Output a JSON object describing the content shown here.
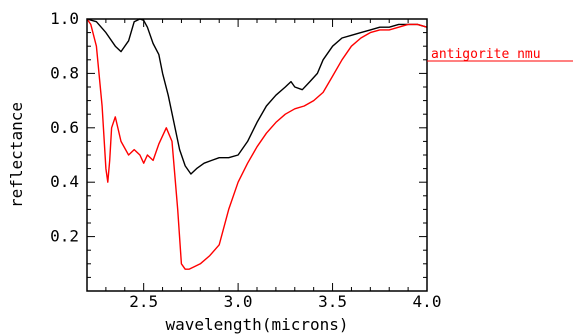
{
  "chart_data": {
    "type": "line",
    "title": "",
    "xlabel": "wavelength(microns)",
    "ylabel": "reflectance",
    "xlim": [
      2.2,
      4.0
    ],
    "ylim": [
      0.0,
      1.0
    ],
    "xticks": [
      {
        "value": 2.5,
        "label": "2.5"
      },
      {
        "value": 3.0,
        "label": "3.0"
      },
      {
        "value": 3.5,
        "label": "3.5"
      },
      {
        "value": 4.0,
        "label": "4.0"
      }
    ],
    "yticks": [
      {
        "value": 0.2,
        "label": "0.2"
      },
      {
        "value": 0.4,
        "label": "0.4"
      },
      {
        "value": 0.6,
        "label": "0.6"
      },
      {
        "value": 0.8,
        "label": "0.8"
      },
      {
        "value": 1.0,
        "label": "1.0"
      }
    ],
    "grid": false,
    "legend_position": "right",
    "series": [
      {
        "color": "#000000",
        "x": [
          2.2,
          2.25,
          2.3,
          2.35,
          2.38,
          2.42,
          2.45,
          2.48,
          2.5,
          2.52,
          2.55,
          2.58,
          2.6,
          2.63,
          2.66,
          2.69,
          2.72,
          2.75,
          2.78,
          2.82,
          2.86,
          2.9,
          2.95,
          3.0,
          3.05,
          3.1,
          3.15,
          3.2,
          3.25,
          3.28,
          3.3,
          3.34,
          3.38,
          3.42,
          3.45,
          3.5,
          3.55,
          3.6,
          3.65,
          3.7,
          3.75,
          3.8,
          3.85,
          3.9,
          3.95,
          4.0
        ],
        "y": [
          1.0,
          0.99,
          0.95,
          0.9,
          0.88,
          0.92,
          0.99,
          1.0,
          0.995,
          0.97,
          0.91,
          0.87,
          0.8,
          0.72,
          0.62,
          0.52,
          0.46,
          0.43,
          0.45,
          0.47,
          0.48,
          0.49,
          0.49,
          0.5,
          0.55,
          0.62,
          0.68,
          0.72,
          0.75,
          0.77,
          0.75,
          0.74,
          0.77,
          0.8,
          0.85,
          0.9,
          0.93,
          0.94,
          0.95,
          0.96,
          0.97,
          0.97,
          0.98,
          0.98,
          0.98,
          0.97
        ]
      },
      {
        "name": "antigorite_nmu",
        "color": "#ff0000",
        "x": [
          2.2,
          2.22,
          2.25,
          2.28,
          2.3,
          2.31,
          2.32,
          2.33,
          2.35,
          2.38,
          2.42,
          2.45,
          2.48,
          2.5,
          2.52,
          2.55,
          2.58,
          2.62,
          2.65,
          2.68,
          2.7,
          2.72,
          2.74,
          2.77,
          2.8,
          2.85,
          2.9,
          2.95,
          3.0,
          3.05,
          3.1,
          3.15,
          3.2,
          3.25,
          3.3,
          3.35,
          3.4,
          3.45,
          3.5,
          3.55,
          3.6,
          3.65,
          3.7,
          3.75,
          3.8,
          3.85,
          3.9,
          3.95,
          4.0
        ],
        "y": [
          1.0,
          0.98,
          0.9,
          0.68,
          0.45,
          0.4,
          0.48,
          0.6,
          0.64,
          0.55,
          0.5,
          0.52,
          0.5,
          0.47,
          0.5,
          0.48,
          0.54,
          0.6,
          0.55,
          0.3,
          0.1,
          0.08,
          0.08,
          0.09,
          0.1,
          0.13,
          0.17,
          0.3,
          0.4,
          0.47,
          0.53,
          0.58,
          0.62,
          0.65,
          0.67,
          0.68,
          0.7,
          0.73,
          0.79,
          0.85,
          0.9,
          0.93,
          0.95,
          0.96,
          0.96,
          0.97,
          0.98,
          0.98,
          0.97
        ]
      }
    ]
  }
}
